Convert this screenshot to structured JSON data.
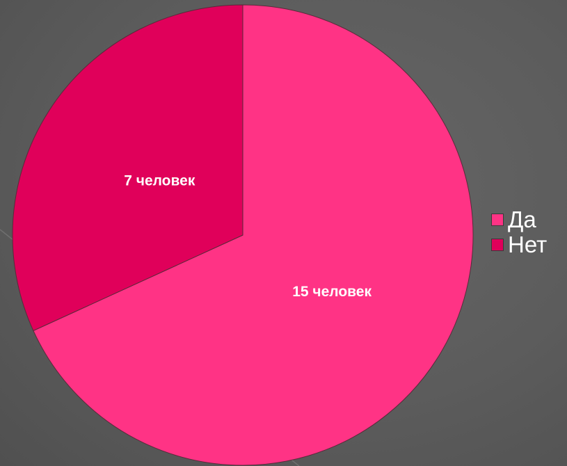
{
  "chart_data": {
    "type": "pie",
    "title": "",
    "categories": [
      "Да",
      "Нет"
    ],
    "values": [
      15,
      7
    ],
    "data_labels": [
      "15 человек",
      "7 человек"
    ],
    "colors": [
      "#ff3385",
      "#e0005a"
    ],
    "legend": {
      "placement": "right",
      "entries": [
        "Да",
        "Нет"
      ]
    },
    "start_angle": "12 o'clock",
    "direction": "clockwise"
  }
}
